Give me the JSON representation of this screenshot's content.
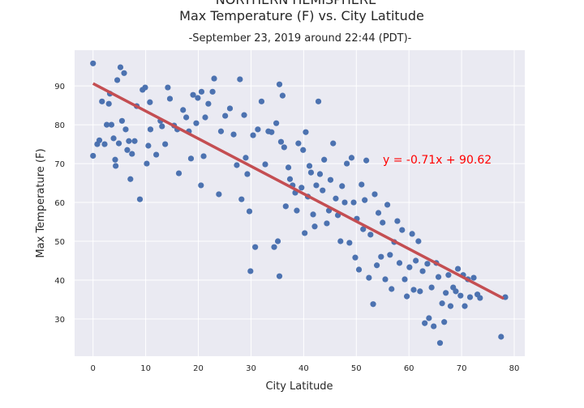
{
  "chart_data": {
    "type": "scatter",
    "title": [
      "NORTHERN HEMISPHERE",
      "Max Temperature (F) vs. City Latitude"
    ],
    "subtitle": "-September 23, 2019 around 22:44 (PDT)-",
    "x_label": "City Latitude",
    "y_label": "Max Temperature (F)",
    "color": "#4c72b0",
    "x": [
      0,
      0,
      0.8,
      1.2,
      1.7,
      2.2,
      2.6,
      3,
      3.2,
      3.5,
      3.9,
      4.2,
      4.3,
      4.6,
      4.9,
      5.2,
      5.5,
      5.9,
      6.2,
      6.5,
      6.8,
      7.1,
      7.4,
      7.9,
      8.3,
      8.9,
      9.4,
      9.9,
      10.2,
      10.5,
      10.8,
      10.9,
      12,
      12.8,
      13.1,
      13.7,
      14.2,
      14.6,
      15.4,
      16,
      16.3,
      17.1,
      17.7,
      18.2,
      18.6,
      19,
      19.6,
      19.9,
      20.5,
      20.6,
      21,
      21.3,
      21.9,
      22.7,
      23,
      23.9,
      24.3,
      25.1,
      26,
      26.7,
      27.3,
      27.9,
      28.2,
      28.7,
      29,
      29.3,
      29.7,
      29.9,
      30.4,
      30.8,
      31.3,
      32,
      32.7,
      33.3,
      33.9,
      34.4,
      34.8,
      35.1,
      35.4,
      35.4,
      35.7,
      36,
      36.3,
      36.6,
      37.1,
      37.4,
      37.9,
      38.4,
      38.7,
      39,
      39.6,
      39.9,
      40.2,
      40.4,
      40.8,
      41.1,
      41.4,
      41.8,
      42.1,
      42.4,
      42.8,
      43.1,
      43.6,
      43.9,
      44.4,
      44.8,
      45.1,
      45.6,
      46.1,
      46.5,
      47,
      47.3,
      47.8,
      48.2,
      48.7,
      49.1,
      49.5,
      49.8,
      50.1,
      50.5,
      51,
      51.3,
      51.6,
      51.9,
      52.4,
      52.7,
      53.2,
      53.5,
      53.9,
      54.2,
      54.7,
      55,
      55.5,
      55.9,
      56.4,
      56.7,
      57.2,
      57.8,
      58.2,
      58.7,
      59.2,
      59.6,
      60.1,
      60.6,
      60.9,
      61.3,
      61.8,
      62.1,
      62.6,
      63,
      63.5,
      63.8,
      64.3,
      64.7,
      65.2,
      65.6,
      65.9,
      66.3,
      66.7,
      67,
      67.5,
      67.9,
      68.4,
      68.9,
      69.3,
      69.8,
      70.3,
      70.6,
      71.2,
      71.6,
      72.3,
      73,
      73.5,
      77.5,
      78.3
    ],
    "values": [
      95.8,
      72,
      75,
      76,
      86,
      75,
      80,
      85.4,
      88,
      80,
      76.5,
      71,
      69.4,
      91.5,
      75.2,
      94.8,
      81,
      93.3,
      78.8,
      73.5,
      75.8,
      66,
      72.5,
      75.8,
      84.8,
      60.8,
      89,
      89.6,
      70,
      74.6,
      85.8,
      78.8,
      72.3,
      81,
      79.6,
      75,
      89.6,
      86.7,
      79.8,
      78.8,
      67.5,
      83.8,
      81.9,
      78.3,
      71.3,
      87.7,
      80.4,
      86.9,
      64.4,
      88.5,
      71.9,
      81.9,
      85.4,
      88.5,
      91.9,
      62.1,
      78.3,
      82.3,
      84.2,
      77.5,
      69.6,
      91.7,
      60.8,
      82.5,
      71.5,
      67.3,
      57.7,
      42.3,
      77.3,
      48.5,
      78.8,
      86,
      69.8,
      78.3,
      78.1,
      48.5,
      80.4,
      50,
      41,
      90.4,
      75.6,
      87.5,
      74.2,
      59,
      69,
      66,
      64.4,
      62.5,
      57.9,
      75.2,
      63.8,
      73.5,
      52.1,
      78.1,
      61.5,
      69.4,
      67.7,
      56.9,
      53.8,
      64.4,
      86,
      67.3,
      63.1,
      71,
      54.6,
      57.9,
      65.8,
      75.2,
      61,
      56.7,
      50,
      64.2,
      60,
      70,
      49.6,
      71.5,
      60,
      45.8,
      55.8,
      42.7,
      64.6,
      53.1,
      60.6,
      70.8,
      40.6,
      51.7,
      33.8,
      62.1,
      43.8,
      57.3,
      46,
      54.8,
      40.2,
      59.4,
      46.5,
      37.7,
      49.8,
      55.2,
      44.4,
      52.9,
      40.2,
      35.8,
      43.3,
      51.9,
      37.5,
      45,
      50,
      37.1,
      42.3,
      28.9,
      44.2,
      30.2,
      38.1,
      28.1,
      44.4,
      40.8,
      23.8,
      34,
      29.2,
      36.7,
      41.3,
      33.3,
      38.1,
      37.1,
      42.9,
      36,
      41.3,
      33.3,
      40.2,
      35.6,
      40.6,
      36.3,
      35.4,
      25.4,
      35.6
    ],
    "regression": {
      "x": [
        0,
        78
      ],
      "values": [
        90.62,
        35.24
      ],
      "color": "#c44e52"
    },
    "annotation": {
      "text": "y = -0.71x + 90.62",
      "color": "#ff0000"
    },
    "xlim": [
      -3.5,
      82
    ],
    "ylim": [
      20.4,
      99.2
    ],
    "xticks": [
      0,
      10,
      20,
      30,
      40,
      50,
      60,
      70,
      80
    ],
    "yticks": [
      30,
      40,
      50,
      60,
      70,
      80,
      90
    ],
    "grid": true,
    "background": "#eaeaf2"
  }
}
